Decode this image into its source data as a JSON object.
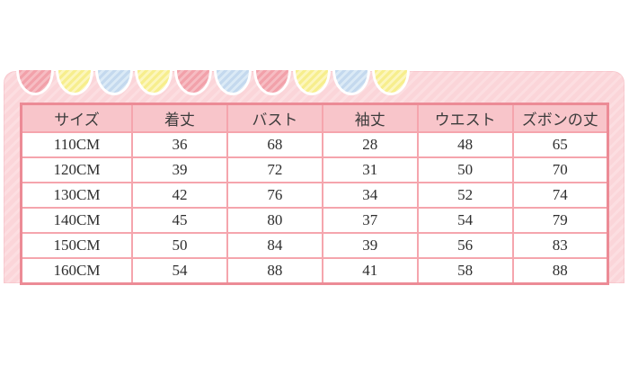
{
  "chart_data": {
    "type": "table",
    "title": "",
    "columns": [
      "サイズ",
      "着丈",
      "バスト",
      "袖丈",
      "ウエスト",
      "ズボンの丈"
    ],
    "rows": [
      [
        "110CM",
        "36",
        "68",
        "28",
        "48",
        "65"
      ],
      [
        "120CM",
        "39",
        "72",
        "31",
        "50",
        "70"
      ],
      [
        "130CM",
        "42",
        "76",
        "34",
        "52",
        "74"
      ],
      [
        "140CM",
        "45",
        "80",
        "37",
        "54",
        "79"
      ],
      [
        "150CM",
        "50",
        "84",
        "39",
        "56",
        "83"
      ],
      [
        "160CM",
        "54",
        "88",
        "41",
        "58",
        "88"
      ]
    ]
  },
  "size_table_colors": {
    "header_bg": "#f8c5ca",
    "outer_border": "#ec8b96",
    "cell_border": "#f5a5ad"
  },
  "frame_decoration": {
    "frame_bg": "#fbd5d9",
    "scallop_sequence": [
      "pink",
      "yellow",
      "blue",
      "yellow",
      "pink",
      "blue",
      "pink",
      "yellow",
      "blue",
      "yellow"
    ],
    "scallop_palette": {
      "pink": {
        "base": "#f2a1aa",
        "stripe": "#f6bdc3"
      },
      "yellow": {
        "base": "#f7ee8d",
        "stripe": "#fcf6bd"
      },
      "blue": {
        "base": "#c4d9ee",
        "stripe": "#dbeaf6"
      }
    }
  }
}
